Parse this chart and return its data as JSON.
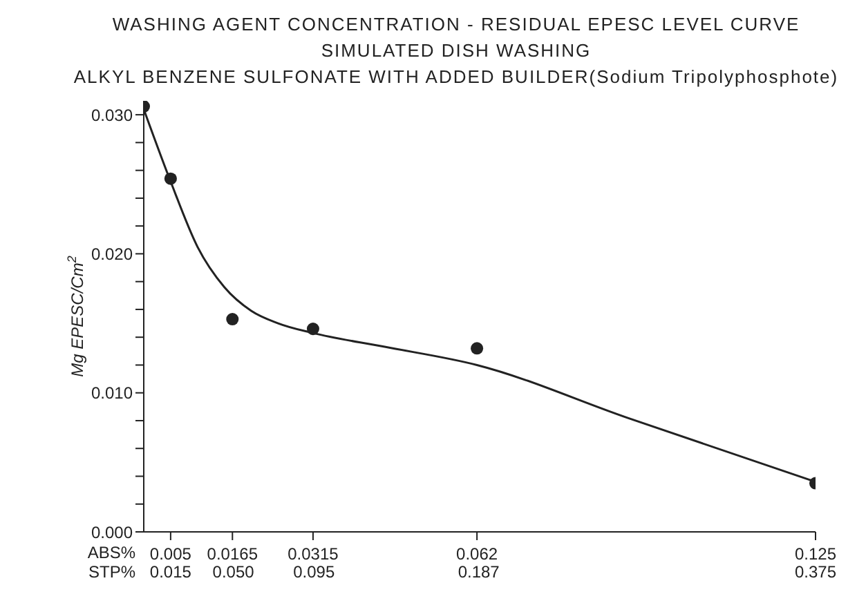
{
  "chart_data": {
    "type": "scatter",
    "title": "WASHING AGENT CONCENTRATION - RESIDUAL EPESC LEVEL CURVE",
    "subtitle": "SIMULATED DISH WASHING\nALKYL BENZENE SULFONATE WITH ADDED BUILDER(Sodium Tripolyphosphote)",
    "xlabel": "ABS%",
    "x2label": "STP%",
    "ylabel": "Mg EPESC/Cm$^{2}$",
    "series": [
      {
        "color": "#222222",
        "marker": "circle",
        "x": [
          0,
          0.005,
          0.0165,
          0.0315,
          0.062,
          0.125
        ],
        "values": [
          0.0306,
          0.0254,
          0.0153,
          0.0146,
          0.0132,
          0.0035
        ]
      },
      {
        "type": "line",
        "color": "#222222",
        "marker": "none",
        "line_style": "solid",
        "x": [
          0,
          0.005,
          0.01,
          0.015,
          0.02,
          0.025,
          0.0315,
          0.045,
          0.062,
          0.09,
          0.125
        ],
        "values": [
          0.0304,
          0.0252,
          0.0205,
          0.0176,
          0.0159,
          0.015,
          0.0143,
          0.0133,
          0.012,
          0.0082,
          0.0036
        ]
      }
    ],
    "xlim": [
      0,
      0.125
    ],
    "xticks": [
      0.005,
      0.0165,
      0.0315,
      0.062,
      0.125
    ],
    "x2lim": [
      0,
      0.375
    ],
    "x2ticks": [
      0.015,
      {
        "value": 0.05,
        "label": "0.050"
      },
      0.095,
      0.187,
      0.375
    ],
    "ylim": [
      0,
      0.031
    ],
    "yticks": [
      "0.000",
      {
        "value": 0.002,
        "label": null
      },
      {
        "value": 0.004,
        "label": null
      },
      {
        "value": 0.006,
        "label": null
      },
      {
        "value": 0.008,
        "label": null
      },
      {
        "value": 0.01,
        "label": "0.010"
      },
      {
        "value": 0.012,
        "label": null
      },
      {
        "value": 0.014,
        "label": null
      },
      {
        "value": 0.016,
        "label": null
      },
      {
        "value": 0.018,
        "label": null
      },
      {
        "value": 0.02,
        "label": "0.020"
      },
      {
        "value": 0.022,
        "label": null
      },
      {
        "value": 0.024,
        "label": null
      },
      {
        "value": 0.026,
        "label": null
      },
      {
        "value": 0.028,
        "label": null
      },
      {
        "value": 0.03,
        "label": "0.030"
      }
    ],
    "grid": false,
    "legend": false
  }
}
